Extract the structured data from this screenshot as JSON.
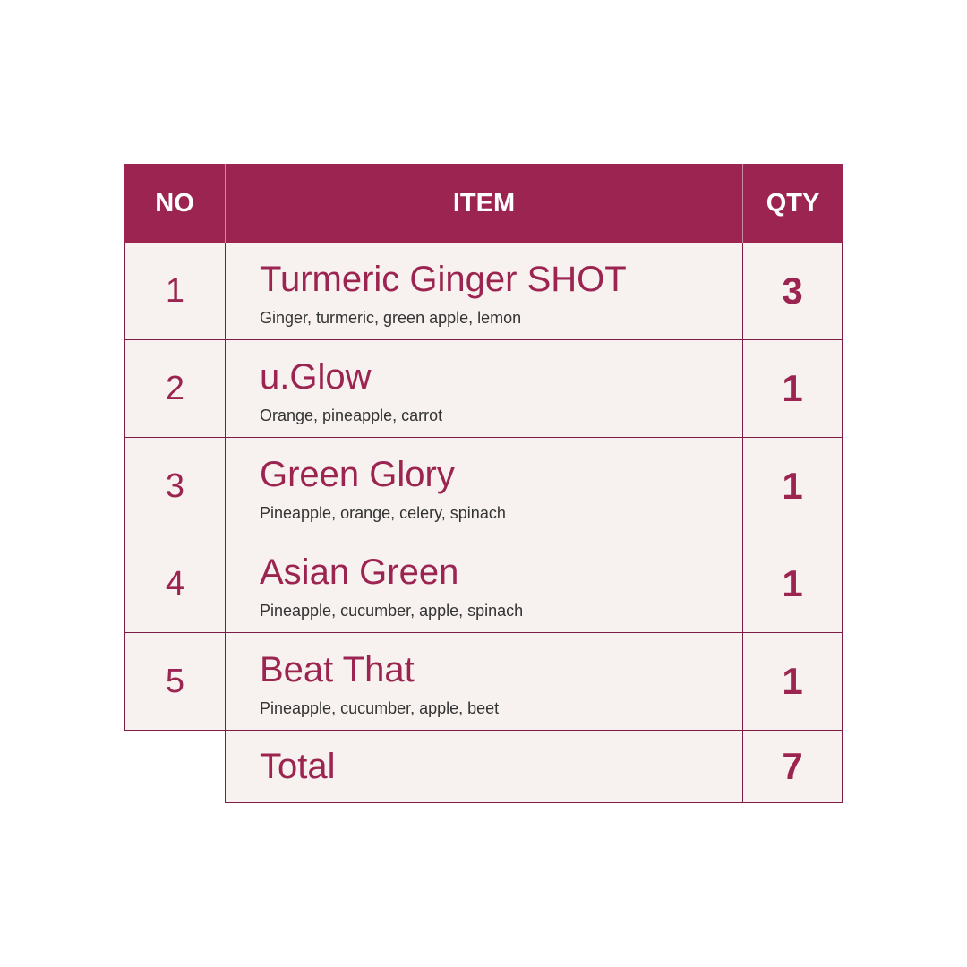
{
  "header": {
    "no": "NO",
    "item": "ITEM",
    "qty": "QTY"
  },
  "rows": [
    {
      "no": "1",
      "name": "Turmeric Ginger SHOT",
      "desc": "Ginger, turmeric, green apple, lemon",
      "qty": "3"
    },
    {
      "no": "2",
      "name": "u.Glow",
      "desc": "Orange, pineapple, carrot",
      "qty": "1"
    },
    {
      "no": "3",
      "name": "Green Glory",
      "desc": "Pineapple, orange, celery, spinach",
      "qty": "1"
    },
    {
      "no": "4",
      "name": "Asian Green",
      "desc": "Pineapple, cucumber, apple, spinach",
      "qty": "1"
    },
    {
      "no": "5",
      "name": "Beat That",
      "desc": "Pineapple, cucumber, apple, beet",
      "qty": "1"
    }
  ],
  "total": {
    "label": "Total",
    "qty": "7"
  },
  "colors": {
    "accent": "#9b2450",
    "cell_bg": "#f7f2ef",
    "border": "#7d1c44"
  }
}
